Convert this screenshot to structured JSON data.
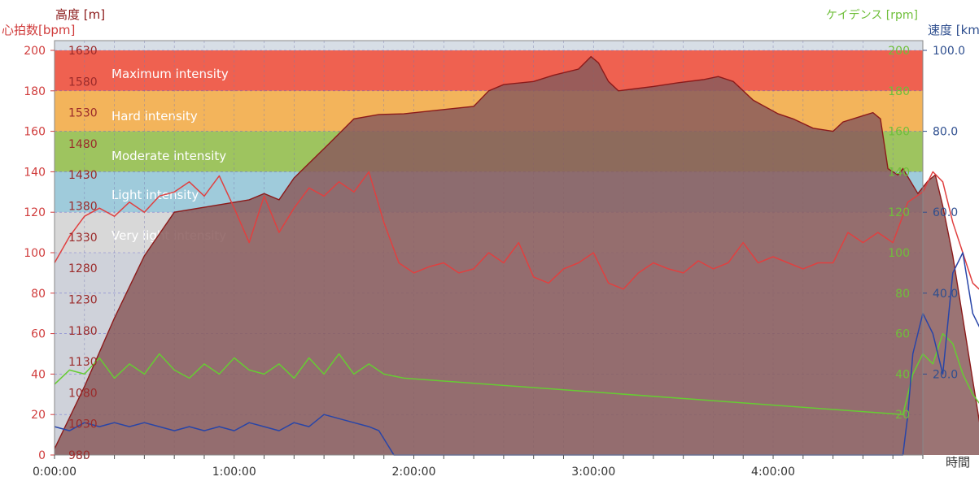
{
  "chart_data": {
    "type": "area",
    "axis_titles": {
      "altitude": "高度 [m]",
      "heart_rate": "心拍数[bpm]",
      "cadence": "ケイデンス [rpm]",
      "speed": "速度 [km/h]",
      "time": "時間"
    },
    "axes": {
      "heart_rate": {
        "range": [
          0,
          200
        ],
        "ticks": [
          "0",
          "20",
          "40",
          "60",
          "80",
          "100",
          "120",
          "140",
          "160",
          "180",
          "200"
        ],
        "color": "#d03c3c"
      },
      "altitude": {
        "range": [
          980,
          1630
        ],
        "ticks": [
          "980",
          "1030",
          "1080",
          "1130",
          "1180",
          "1230",
          "1280",
          "1330",
          "1380",
          "1430",
          "1480",
          "1530",
          "1580",
          "1630"
        ],
        "color": "#8b1a1a"
      },
      "speed": {
        "range": [
          0,
          100
        ],
        "ticks": [
          "20.0",
          "40.0",
          "60.0",
          "80.0",
          "100.0"
        ],
        "color": "#2f4f8f"
      },
      "cadence": {
        "range": [
          0,
          200
        ],
        "ticks": [
          "20",
          "40",
          "60",
          "80",
          "100",
          "120",
          "140",
          "160",
          "180",
          "200"
        ],
        "color": "#6fbf3a"
      },
      "time": {
        "range_seconds": [
          0,
          17400
        ],
        "ticks": [
          "0:00:00",
          "1:00:00",
          "2:00:00",
          "3:00:00",
          "4:00:00"
        ]
      }
    },
    "zones": [
      {
        "label": "Maximum intensity",
        "hr_range": [
          180,
          200
        ],
        "color": "#ef6150"
      },
      {
        "label": "Hard intensity",
        "hr_range": [
          160,
          180
        ],
        "color": "#f3b45b"
      },
      {
        "label": "Moderate intensity",
        "hr_range": [
          140,
          160
        ],
        "color": "#9ec45f"
      },
      {
        "label": "Light intensity",
        "hr_range": [
          120,
          140
        ],
        "color": "#9fcbdb"
      },
      {
        "label": "Very light intensity",
        "hr_range": [
          100,
          120
        ],
        "color": "#d8d8d8"
      }
    ],
    "grid": true,
    "series": [
      {
        "name": "高度",
        "axis": "altitude",
        "style": "area",
        "color": "#8b1a1a",
        "fill": "#8a5c5c",
        "points": [
          [
            0,
            990
          ],
          [
            600,
            1090
          ],
          [
            1200,
            1200
          ],
          [
            1800,
            1300
          ],
          [
            2400,
            1370
          ],
          [
            3900,
            1390
          ],
          [
            4200,
            1400
          ],
          [
            4500,
            1390
          ],
          [
            4800,
            1425
          ],
          [
            5500,
            1480
          ],
          [
            6000,
            1520
          ],
          [
            6500,
            1527
          ],
          [
            7000,
            1528
          ],
          [
            7800,
            1535
          ],
          [
            8400,
            1540
          ],
          [
            8700,
            1565
          ],
          [
            9000,
            1575
          ],
          [
            9600,
            1580
          ],
          [
            10000,
            1590
          ],
          [
            10500,
            1600
          ],
          [
            10750,
            1620
          ],
          [
            10900,
            1610
          ],
          [
            11100,
            1580
          ],
          [
            11300,
            1565
          ],
          [
            11600,
            1568
          ],
          [
            12000,
            1572
          ],
          [
            12500,
            1578
          ],
          [
            13000,
            1583
          ],
          [
            13300,
            1588
          ],
          [
            13600,
            1580
          ],
          [
            14000,
            1550
          ],
          [
            14500,
            1528
          ],
          [
            14800,
            1520
          ],
          [
            15200,
            1505
          ],
          [
            15600,
            1500
          ],
          [
            15800,
            1515
          ],
          [
            16200,
            1525
          ],
          [
            16400,
            1530
          ],
          [
            16550,
            1520
          ],
          [
            16700,
            1440
          ],
          [
            16900,
            1430
          ],
          [
            17000,
            1440
          ],
          [
            17150,
            1420
          ],
          [
            17300,
            1400
          ],
          [
            17500,
            1420
          ],
          [
            17650,
            1430
          ],
          [
            17800,
            1380
          ],
          [
            18000,
            1300
          ],
          [
            18200,
            1200
          ],
          [
            18400,
            1100
          ],
          [
            18500,
            1050
          ],
          [
            18600,
            1000
          ],
          [
            18700,
            990
          ]
        ]
      },
      {
        "name": "心拍数",
        "axis": "heart_rate",
        "style": "line",
        "color": "#e04040",
        "points": [
          [
            0,
            95
          ],
          [
            300,
            108
          ],
          [
            600,
            118
          ],
          [
            900,
            122
          ],
          [
            1200,
            118
          ],
          [
            1500,
            125
          ],
          [
            1800,
            120
          ],
          [
            2100,
            128
          ],
          [
            2400,
            130
          ],
          [
            2700,
            135
          ],
          [
            3000,
            128
          ],
          [
            3300,
            138
          ],
          [
            3600,
            122
          ],
          [
            3900,
            105
          ],
          [
            4200,
            128
          ],
          [
            4500,
            110
          ],
          [
            4800,
            122
          ],
          [
            5100,
            132
          ],
          [
            5400,
            128
          ],
          [
            5700,
            135
          ],
          [
            6000,
            130
          ],
          [
            6300,
            140
          ],
          [
            6600,
            115
          ],
          [
            6900,
            95
          ],
          [
            7200,
            90
          ],
          [
            7500,
            93
          ],
          [
            7800,
            95
          ],
          [
            8100,
            90
          ],
          [
            8400,
            92
          ],
          [
            8700,
            100
          ],
          [
            9000,
            95
          ],
          [
            9300,
            105
          ],
          [
            9600,
            88
          ],
          [
            9900,
            85
          ],
          [
            10200,
            92
          ],
          [
            10500,
            95
          ],
          [
            10800,
            100
          ],
          [
            11100,
            85
          ],
          [
            11400,
            82
          ],
          [
            11700,
            90
          ],
          [
            12000,
            95
          ],
          [
            12300,
            92
          ],
          [
            12600,
            90
          ],
          [
            12900,
            96
          ],
          [
            13200,
            92
          ],
          [
            13500,
            95
          ],
          [
            13800,
            105
          ],
          [
            14100,
            95
          ],
          [
            14400,
            98
          ],
          [
            14700,
            95
          ],
          [
            15000,
            92
          ],
          [
            15300,
            95
          ],
          [
            15600,
            95
          ],
          [
            15900,
            110
          ],
          [
            16200,
            105
          ],
          [
            16500,
            110
          ],
          [
            16800,
            105
          ],
          [
            17100,
            125
          ],
          [
            17400,
            130
          ],
          [
            17600,
            140
          ],
          [
            17800,
            135
          ],
          [
            18000,
            115
          ],
          [
            18200,
            100
          ],
          [
            18400,
            85
          ],
          [
            18700,
            78
          ]
        ]
      },
      {
        "name": "ケイデンス",
        "axis": "cadence",
        "style": "line",
        "color": "#66cc33",
        "points": [
          [
            0,
            35
          ],
          [
            300,
            42
          ],
          [
            600,
            40
          ],
          [
            900,
            48
          ],
          [
            1200,
            38
          ],
          [
            1500,
            45
          ],
          [
            1800,
            40
          ],
          [
            2100,
            50
          ],
          [
            2400,
            42
          ],
          [
            2700,
            38
          ],
          [
            3000,
            45
          ],
          [
            3300,
            40
          ],
          [
            3600,
            48
          ],
          [
            3900,
            42
          ],
          [
            4200,
            40
          ],
          [
            4500,
            45
          ],
          [
            4800,
            38
          ],
          [
            5100,
            48
          ],
          [
            5400,
            40
          ],
          [
            5700,
            50
          ],
          [
            6000,
            40
          ],
          [
            6300,
            45
          ],
          [
            6600,
            40
          ],
          [
            7000,
            38
          ],
          [
            17000,
            20
          ],
          [
            17200,
            40
          ],
          [
            17400,
            50
          ],
          [
            17600,
            45
          ],
          [
            17800,
            60
          ],
          [
            18000,
            55
          ],
          [
            18200,
            40
          ],
          [
            18400,
            30
          ],
          [
            18700,
            20
          ]
        ]
      },
      {
        "name": "速度",
        "axis": "speed",
        "style": "line",
        "color": "#2845a8",
        "points": [
          [
            0,
            7
          ],
          [
            300,
            6
          ],
          [
            600,
            8
          ],
          [
            900,
            7
          ],
          [
            1200,
            8
          ],
          [
            1500,
            7
          ],
          [
            1800,
            8
          ],
          [
            2100,
            7
          ],
          [
            2400,
            6
          ],
          [
            2700,
            7
          ],
          [
            3000,
            6
          ],
          [
            3300,
            7
          ],
          [
            3600,
            6
          ],
          [
            3900,
            8
          ],
          [
            4200,
            7
          ],
          [
            4500,
            6
          ],
          [
            4800,
            8
          ],
          [
            5100,
            7
          ],
          [
            5400,
            10
          ],
          [
            5700,
            9
          ],
          [
            6000,
            8
          ],
          [
            6300,
            7
          ],
          [
            6500,
            6
          ],
          [
            6700,
            2
          ],
          [
            6800,
            0
          ],
          [
            17000,
            0
          ],
          [
            17100,
            10
          ],
          [
            17200,
            25
          ],
          [
            17400,
            35
          ],
          [
            17600,
            30
          ],
          [
            17800,
            20
          ],
          [
            18000,
            45
          ],
          [
            18200,
            50
          ],
          [
            18400,
            35
          ],
          [
            18600,
            30
          ],
          [
            18700,
            20
          ]
        ]
      }
    ]
  }
}
